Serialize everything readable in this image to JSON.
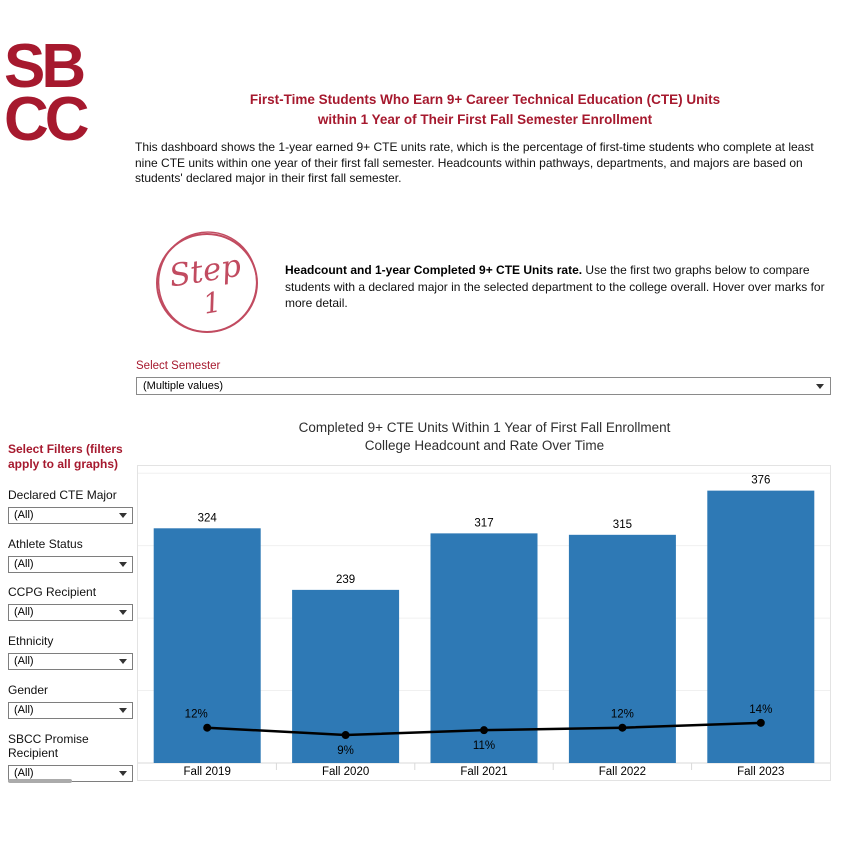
{
  "brand": {
    "logo_line1": "SB",
    "logo_line2": "CC",
    "color": "#A6192E"
  },
  "header": {
    "title_line1": "First-Time Students Who Earn 9+ Career Technical Education (CTE) Units",
    "title_line2": "within 1 Year of Their First Fall Semester Enrollment",
    "description": "This dashboard shows the 1-year earned 9+ CTE units rate, which is the percentage of first-time students who complete at least nine CTE units within one year of their first fall semester. Headcounts within pathways, departments, and majors are based on students' declared major in their first fall semester."
  },
  "step": {
    "badge_word": "Step",
    "badge_number": "1",
    "bold_text": "Headcount and 1-year Completed 9+ CTE Units rate.",
    "body_text": " Use the first two graphs below to compare students with a declared major in the selected department to the college overall. Hover over marks for more detail.",
    "accent_color": "#C14B60"
  },
  "semester_filter": {
    "label": "Select Semester",
    "value": "(Multiple values)"
  },
  "sidebar": {
    "heading": "Select Filters (filters apply to all graphs)",
    "filters": [
      {
        "label": "Declared CTE Major",
        "value": "(All)"
      },
      {
        "label": "Athlete Status",
        "value": "(All)"
      },
      {
        "label": "CCPG Recipient",
        "value": "(All)"
      },
      {
        "label": "Ethnicity",
        "value": "(All)"
      },
      {
        "label": "Gender",
        "value": "(All)"
      },
      {
        "label": "SBCC Promise Recipient",
        "value": "(All)"
      }
    ]
  },
  "chart_data": {
    "type": "bar",
    "title": "Completed 9+ CTE Units Within 1 Year of First Fall Enrollment",
    "subtitle": "College Headcount and Rate Over Time",
    "categories": [
      "Fall 2019",
      "Fall 2020",
      "Fall 2021",
      "Fall 2022",
      "Fall 2023"
    ],
    "series": [
      {
        "name": "College Headcount",
        "type": "bar",
        "values": [
          324,
          239,
          317,
          315,
          376
        ],
        "color": "#2E79B5",
        "ylim": [
          0,
          410
        ]
      },
      {
        "name": "Completed 9+ CTE Units Rate",
        "type": "line",
        "values": [
          12,
          9,
          11,
          12,
          14
        ],
        "unit": "%",
        "color": "#000000",
        "ylim": [
          0,
          120
        ],
        "label_positions": [
          "above-left",
          "below",
          "below",
          "above",
          "above"
        ]
      }
    ],
    "gridlines": [
      100,
      200,
      300,
      400
    ],
    "grid_color": "#f0f0f0",
    "axis_color": "#d9d9d9",
    "legend_position": "none",
    "data_labels": true
  }
}
